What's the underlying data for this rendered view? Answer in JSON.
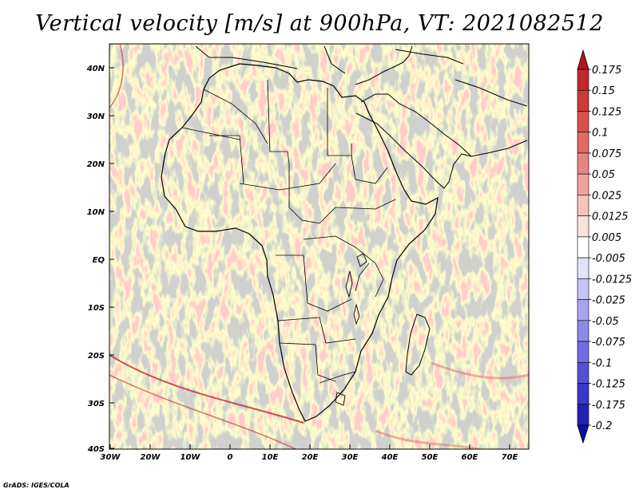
{
  "title": "Vertical velocity [m/s] at 900hPa, VT: 2021082512",
  "footer": "GrADS: IGES/COLA",
  "lat_ticks": [
    "40N",
    "30N",
    "20N",
    "10N",
    "EQ",
    "10S",
    "20S",
    "30S",
    "40S"
  ],
  "lon_ticks": [
    "30W",
    "20W",
    "10W",
    "0",
    "10E",
    "20E",
    "30E",
    "40E",
    "50E",
    "60E",
    "70E"
  ],
  "colorbar": {
    "labels": [
      "0.175",
      "0.15",
      "0.125",
      "0.1",
      "0.075",
      "0.05",
      "0.025",
      "0.0125",
      "0.005",
      "-0.005",
      "-0.0125",
      "-0.025",
      "-0.05",
      "-0.075",
      "-0.1",
      "-0.125",
      "-0.175",
      "-0.2"
    ],
    "colors": [
      "#b4141e",
      "#c0282d",
      "#cc3c3c",
      "#d8504e",
      "#e06a66",
      "#e8847f",
      "#f0a29c",
      "#f6c3bd",
      "#fbe2de",
      "#ffffff",
      "#e2e2fb",
      "#c4c4f6",
      "#a6a6f0",
      "#8a8ae8",
      "#6e6ee0",
      "#5252d4",
      "#3838c6",
      "#2222b4",
      "#1010a0"
    ]
  }
}
